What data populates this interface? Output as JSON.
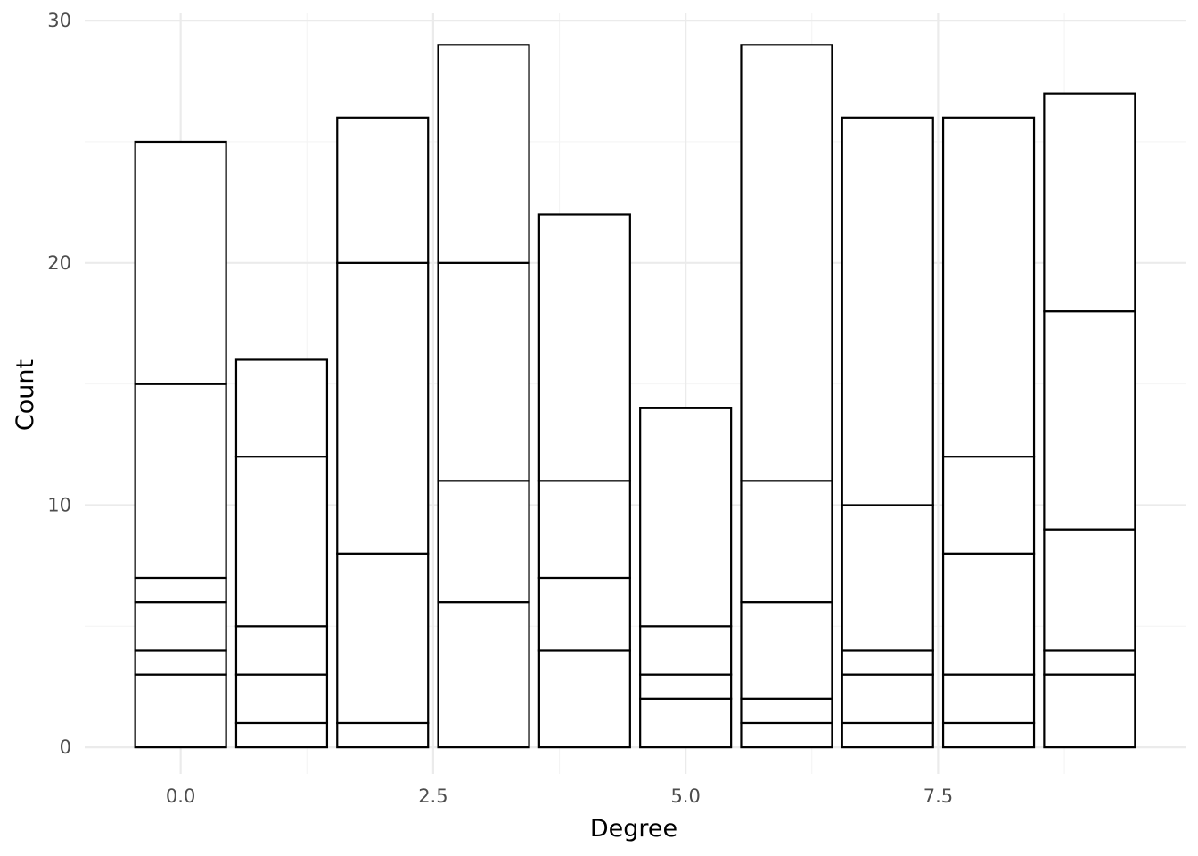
{
  "chart_data": {
    "type": "bar",
    "stacked": true,
    "title": "",
    "xlabel": "Degree",
    "ylabel": "Count",
    "xlim": [
      -0.95,
      9.95
    ],
    "ylim": [
      -1.1,
      30.3
    ],
    "x_ticks": [
      0.0,
      2.5,
      5.0,
      7.5
    ],
    "x_tick_labels": [
      "0.0",
      "2.5",
      "5.0",
      "7.5"
    ],
    "y_ticks": [
      0,
      10,
      20,
      30
    ],
    "y_tick_labels": [
      "0",
      "10",
      "20",
      "30"
    ],
    "bar_width": 0.9,
    "grid": true,
    "legend": "none",
    "fill_color": "#ffffff",
    "outline_color": "#000000",
    "bars": [
      {
        "x": 0,
        "segments": [
          3,
          1,
          2,
          1,
          8,
          10
        ],
        "total": 25
      },
      {
        "x": 1,
        "segments": [
          1,
          2,
          2,
          7,
          4
        ],
        "total": 16
      },
      {
        "x": 2,
        "segments": [
          1,
          7,
          12,
          6
        ],
        "total": 26
      },
      {
        "x": 3,
        "segments": [
          6,
          5,
          9,
          9
        ],
        "total": 29
      },
      {
        "x": 4,
        "segments": [
          4,
          3,
          4,
          11
        ],
        "total": 22
      },
      {
        "x": 5,
        "segments": [
          2,
          1,
          2,
          9
        ],
        "total": 14
      },
      {
        "x": 6,
        "segments": [
          1,
          1,
          4,
          5,
          18
        ],
        "total": 29
      },
      {
        "x": 7,
        "segments": [
          1,
          2,
          1,
          6,
          16
        ],
        "total": 26
      },
      {
        "x": 8,
        "segments": [
          1,
          2,
          5,
          4,
          14
        ],
        "total": 26
      },
      {
        "x": 9,
        "segments": [
          3,
          1,
          5,
          9,
          9
        ],
        "total": 27
      }
    ]
  }
}
